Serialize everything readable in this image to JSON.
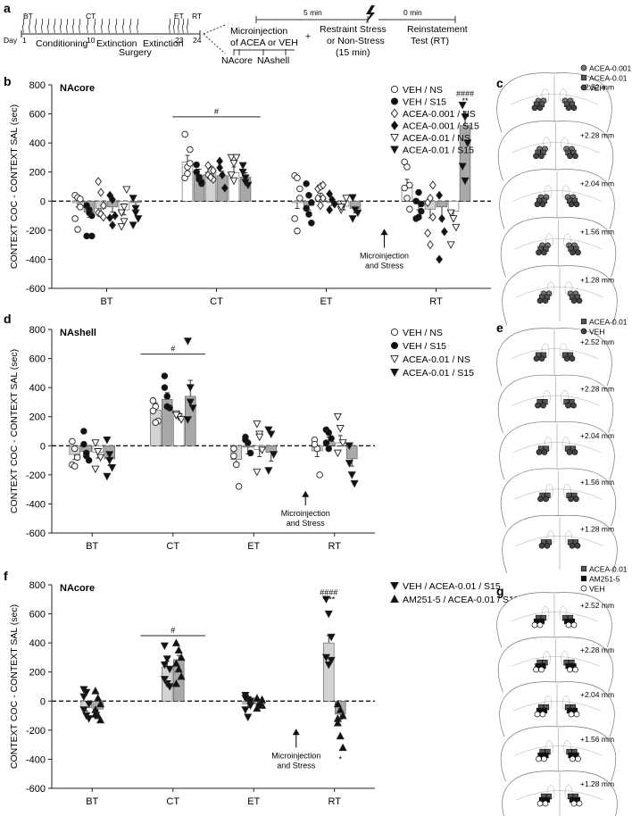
{
  "timeline": {
    "panel_letter": "a",
    "phase_labels": [
      "BT",
      "CT",
      "ET",
      "RT"
    ],
    "day_label": "Day",
    "day_ticks": [
      "1",
      "10",
      "23",
      "24"
    ],
    "stage_labels": [
      "Conditioning",
      "Extinction",
      "Extinction",
      "Surgery"
    ],
    "microinjection_text": [
      "Microinjection",
      "of ACEA or VEH"
    ],
    "region_labels": [
      "NAcore",
      "NAshell"
    ],
    "plus": "+",
    "stress_text": [
      "Restraint Stress",
      "or Non-Stress",
      "(15 min)"
    ],
    "reinstatement_text": [
      "Reinstatement",
      "Test (RT)"
    ],
    "interval_1": "5 min",
    "interval_2": "0 min"
  },
  "chart_data": [
    {
      "type": "bar",
      "panel": "b",
      "region": "NAcore",
      "ylabel": "CONTEXT COC - CONTEXT SAL (sec)",
      "categories": [
        "BT",
        "CT",
        "ET",
        "RT"
      ],
      "ylim": [
        -600,
        800
      ],
      "yticks": [
        -600,
        -400,
        -200,
        0,
        200,
        400,
        600,
        800
      ],
      "series": [
        {
          "name": "VEH / NS",
          "marker": "circle-open",
          "fill": "#ffffff",
          "values": [
            -10,
            270,
            -10,
            95
          ],
          "sem": [
            30,
            45,
            40,
            55
          ]
        },
        {
          "name": "VEH / S15",
          "marker": "circle-filled",
          "fill": "#a9a9a9",
          "values": [
            -75,
            180,
            -30,
            -5
          ],
          "sem": [
            35,
            40,
            30,
            55
          ]
        },
        {
          "name": "ACEA-0.001 / NS",
          "marker": "diamond-open",
          "fill": "#d3d3d3",
          "values": [
            -50,
            200,
            20,
            -55
          ],
          "sem": [
            25,
            40,
            35,
            60
          ]
        },
        {
          "name": "ACEA-0.001 / S15",
          "marker": "diamond-filled",
          "fill": "#a9a9a9",
          "values": [
            -40,
            175,
            -10,
            -40
          ],
          "sem": [
            35,
            30,
            20,
            70
          ]
        },
        {
          "name": "ACEA-0.01 / NS",
          "marker": "triangle-down-open",
          "fill": "#ffffff",
          "values": [
            -60,
            195,
            -35,
            -70
          ],
          "sem": [
            35,
            40,
            25,
            45
          ]
        },
        {
          "name": "ACEA-0.01 / S15",
          "marker": "triangle-down-filled",
          "fill": "#a9a9a9",
          "values": [
            -10,
            165,
            -50,
            520
          ],
          "sem": [
            40,
            30,
            30,
            95
          ]
        }
      ],
      "points": [
        [
          [
            40,
            25,
            -40,
            -120,
            -195,
            15
          ],
          [
            160,
            235,
            355,
            460,
            190,
            260
          ],
          [
            175,
            160,
            20,
            -120,
            -205,
            85
          ],
          [
            270,
            235,
            110,
            90,
            20,
            -55
          ]
        ],
        [
          [
            -30,
            -60,
            -240,
            -240,
            -80,
            -100
          ],
          [
            250,
            165,
            120,
            200,
            150,
            130
          ],
          [
            120,
            40,
            -10,
            -50,
            -90,
            -150
          ],
          [
            0,
            60,
            -20,
            -120,
            -110,
            -70
          ]
        ],
        [
          [
            135,
            60,
            -30,
            -80,
            -90,
            -110
          ],
          [
            180,
            210,
            150,
            245,
            165,
            210
          ],
          [
            85,
            100,
            20,
            20,
            -30,
            110
          ],
          [
            -10,
            20,
            -110,
            -220,
            -300,
            110
          ]
        ],
        [
          [
            40,
            10,
            -100,
            -115,
            -165
          ],
          [
            275,
            180,
            90,
            230
          ],
          [
            50,
            10,
            -20,
            -60
          ],
          [
            40,
            -120,
            -210,
            -400
          ]
        ],
        [
          [
            -175,
            -140,
            80,
            -80,
            -40
          ],
          [
            300,
            260,
            300,
            180,
            140
          ],
          [
            -60,
            -20,
            20,
            -40
          ],
          [
            -80,
            -120,
            -180,
            -300
          ]
        ],
        [
          [
            20,
            -80,
            -120,
            -165,
            -50
          ],
          [
            200,
            160,
            110,
            245,
            130
          ],
          [
            25,
            -60,
            -80,
            -120
          ],
          [
            660,
            580,
            400,
            240,
            140
          ]
        ]
      ],
      "ns_bracket": {
        "from": "CT",
        "label": "#"
      },
      "sig_rt": [
        "####",
        "**"
      ],
      "arrow_text": [
        "Microinjection",
        "and Stress"
      ]
    },
    {
      "type": "bar",
      "panel": "d",
      "region": "NAshell",
      "ylabel": "CONTEXT COC - CONTEXT SAL (sec)",
      "categories": [
        "BT",
        "CT",
        "ET",
        "RT"
      ],
      "ylim": [
        -600,
        800
      ],
      "yticks": [
        -600,
        -400,
        -200,
        0,
        200,
        400,
        600,
        800
      ],
      "series": [
        {
          "name": "VEH / NS",
          "marker": "circle-open",
          "fill": "#d3d3d3",
          "values": [
            -60,
            245,
            -95,
            -35
          ],
          "sem": [
            35,
            50,
            40,
            40
          ]
        },
        {
          "name": "VEH / S15",
          "marker": "circle-filled",
          "fill": "#a9a9a9",
          "values": [
            -40,
            320,
            -10,
            30
          ],
          "sem": [
            40,
            45,
            45,
            30
          ]
        },
        {
          "name": "ACEA-0.01 / NS",
          "marker": "triangle-down-open",
          "fill": "#ffffff",
          "values": [
            -45,
            205,
            -25,
            20
          ],
          "sem": [
            40,
            20,
            50,
            50
          ]
        },
        {
          "name": "ACEA-0.01 / S15",
          "marker": "triangle-down-filled",
          "fill": "#a9a9a9",
          "values": [
            -90,
            340,
            -45,
            -90
          ],
          "sem": [
            45,
            110,
            60,
            50
          ]
        }
      ],
      "points": [
        [
          [
            30,
            -20,
            -80,
            -130,
            -140
          ],
          [
            310,
            270,
            170,
            240,
            160
          ],
          [
            -70,
            -130,
            -280,
            -20
          ],
          [
            40,
            -20,
            -200,
            10
          ]
        ],
        [
          [
            100,
            -70,
            -100,
            10,
            -50
          ],
          [
            480,
            340,
            260,
            400,
            270
          ],
          [
            60,
            20,
            -50,
            40
          ],
          [
            110,
            90,
            50,
            20,
            -20
          ]
        ],
        [
          [
            20,
            -40,
            -80,
            -160
          ],
          [
            220,
            200,
            180,
            210
          ],
          [
            150,
            80,
            -30,
            -180,
            60
          ],
          [
            200,
            120,
            20,
            -50
          ]
        ],
        [
          [
            40,
            -60,
            -150,
            -210,
            -100
          ],
          [
            720,
            400,
            260,
            180,
            300
          ],
          [
            110,
            80,
            -60,
            -170
          ],
          [
            -120,
            -200,
            -260,
            0
          ]
        ]
      ],
      "ns_bracket": {
        "from": "CT",
        "label": "#"
      },
      "arrow_text": [
        "Microinjection",
        "and Stress"
      ]
    },
    {
      "type": "bar",
      "panel": "f",
      "region": "NAcore",
      "ylabel": "CONTEXT COC - CONTEXT SAL (sec)",
      "categories": [
        "BT",
        "CT",
        "ET",
        "RT"
      ],
      "ylim": [
        -600,
        800
      ],
      "yticks": [
        -600,
        -400,
        -200,
        0,
        200,
        400,
        600,
        800
      ],
      "series": [
        {
          "name": "VEH / ACEA-0.01 / S15",
          "marker": "triangle-down-filled",
          "fill": "#d3d3d3",
          "values": [
            -45,
            235,
            -20,
            400
          ],
          "sem": [
            25,
            40,
            25,
            50
          ]
        },
        {
          "name": "AM251-5 / ACEA-0.01 / S15",
          "marker": "triangle-up-filled",
          "fill": "#a9a9a9",
          "values": [
            -55,
            285,
            -20,
            -90
          ],
          "sem": [
            25,
            30,
            15,
            35
          ]
        }
      ],
      "points": [
        [
          [
            80,
            60,
            -20,
            -60,
            -100,
            -120,
            30
          ],
          [
            380,
            290,
            220,
            150,
            120,
            100,
            250
          ],
          [
            40,
            10,
            -30,
            -60,
            -110,
            0,
            20
          ],
          [
            700,
            600,
            440,
            300,
            250,
            280
          ]
        ],
        [
          [
            70,
            20,
            -20,
            -60,
            -100,
            -130,
            -90
          ],
          [
            400,
            350,
            300,
            260,
            220,
            170,
            120
          ],
          [
            20,
            -10,
            -30,
            -50,
            -20,
            10
          ],
          [
            -20,
            -60,
            -100,
            -150,
            -240,
            -320,
            -120
          ]
        ]
      ],
      "ns_bracket": {
        "from": "CT",
        "label": "#"
      },
      "sig_rt": [
        "####",
        "****"
      ],
      "sig_rt_b": "*",
      "arrow_text": [
        "Microinjection",
        "and Stress"
      ]
    }
  ],
  "brains": [
    {
      "panel": "c",
      "legend": [
        "ACEA-0.001",
        "ACEA-0.01",
        "VEH"
      ],
      "levels": [
        "+2.52 mm",
        "+2.28 mm",
        "+2.04 mm",
        "+1.56 mm",
        "+1.28 mm"
      ]
    },
    {
      "panel": "e",
      "legend": [
        "ACEA-0.01",
        "VEH"
      ],
      "levels": [
        "+2.52 mm",
        "+2.28 mm",
        "+2.04 mm",
        "+1.56 mm",
        "+1.28 mm"
      ]
    },
    {
      "panel": "g",
      "legend": [
        "ACEA-0.01",
        "AM251-5",
        "VEH"
      ],
      "levels": [
        "+2.52 mm",
        "+2.28 mm",
        "+2.04 mm",
        "+1.56 mm",
        "+1.28 mm"
      ]
    }
  ]
}
